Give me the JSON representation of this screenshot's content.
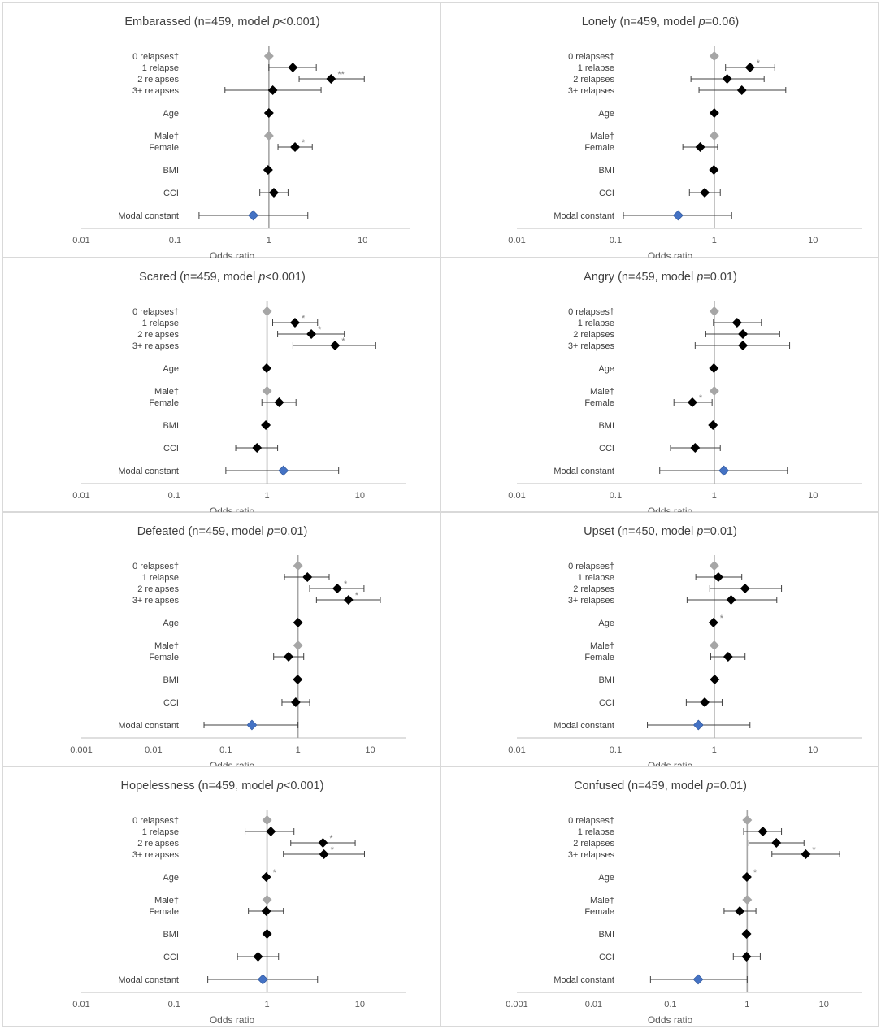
{
  "colors": {
    "point": "#000000",
    "reference": "#a6a6a6",
    "constant": "#4472c4",
    "axis": "#bfbfbf",
    "refline": "#a6a6a6",
    "errbar": "#404040"
  },
  "chart_data": [
    {
      "type": "forest",
      "title_main": "Embarassed (n=459, model ",
      "title_p": "p",
      "title_end": "<0.001)",
      "xlabel": "Odds ratio",
      "xscale": "log",
      "xticks": [
        0.01,
        0.1,
        1,
        10
      ],
      "xtick_labels": [
        "0.01",
        "0.1",
        "1",
        "10"
      ],
      "rows": [
        {
          "label": "0 relapses†",
          "or": 1,
          "ref": true
        },
        {
          "label": "1 relapse",
          "or": 1.8,
          "lo": 1.0,
          "hi": 3.2
        },
        {
          "label": "2 relapses",
          "or": 4.6,
          "lo": 2.1,
          "hi": 10.4,
          "sig": "**"
        },
        {
          "label": "3+ relapses",
          "or": 1.1,
          "lo": 0.34,
          "hi": 3.6
        },
        {
          "label": "Age",
          "or": 1.0,
          "lo": 0.98,
          "hi": 1.02
        },
        {
          "label": "Male†",
          "or": 1,
          "ref": true
        },
        {
          "label": "Female",
          "or": 1.9,
          "lo": 1.25,
          "hi": 2.9,
          "sig": "*"
        },
        {
          "label": "BMI",
          "or": 0.98,
          "lo": 0.95,
          "hi": 1.01
        },
        {
          "label": "CCI",
          "or": 1.13,
          "lo": 0.8,
          "hi": 1.6
        },
        {
          "label": "Modal constant",
          "or": 0.68,
          "lo": 0.18,
          "hi": 2.6,
          "constant": true
        }
      ]
    },
    {
      "type": "forest",
      "title_main": "Lonely (n=459, model ",
      "title_p": "p",
      "title_end": "=0.06)",
      "xlabel": "Odds ratio",
      "xscale": "log",
      "xticks": [
        0.01,
        0.1,
        1,
        10
      ],
      "xtick_labels": [
        "0.01",
        "0.1",
        "1",
        "10"
      ],
      "rows": [
        {
          "label": "0 relapses†",
          "or": 1,
          "ref": true
        },
        {
          "label": "1 relapse",
          "or": 2.3,
          "lo": 1.3,
          "hi": 4.1,
          "sig": "*"
        },
        {
          "label": "2 relapses",
          "or": 1.35,
          "lo": 0.58,
          "hi": 3.2
        },
        {
          "label": "3+ relapses",
          "or": 1.9,
          "lo": 0.7,
          "hi": 5.3
        },
        {
          "label": "Age",
          "or": 1.0,
          "lo": 0.98,
          "hi": 1.02
        },
        {
          "label": "Male†",
          "or": 1,
          "ref": true
        },
        {
          "label": "Female",
          "or": 0.72,
          "lo": 0.48,
          "hi": 1.08
        },
        {
          "label": "BMI",
          "or": 0.99,
          "lo": 0.96,
          "hi": 1.02
        },
        {
          "label": "CCI",
          "or": 0.8,
          "lo": 0.56,
          "hi": 1.15
        },
        {
          "label": "Modal constant",
          "or": 0.43,
          "lo": 0.12,
          "hi": 1.5,
          "constant": true
        }
      ]
    },
    {
      "type": "forest",
      "title_main": "Scared (n=459, model ",
      "title_p": "p",
      "title_end": "<0.001)",
      "xlabel": "Odds ratio",
      "xscale": "log",
      "xticks": [
        0.01,
        0.1,
        1,
        10
      ],
      "xtick_labels": [
        "0.01",
        "0.1",
        "1",
        "10"
      ],
      "rows": [
        {
          "label": "0 relapses†",
          "or": 1,
          "ref": true
        },
        {
          "label": "1 relapse",
          "or": 2.0,
          "lo": 1.15,
          "hi": 3.5,
          "sig": "*"
        },
        {
          "label": "2 relapses",
          "or": 3.0,
          "lo": 1.3,
          "hi": 6.8,
          "sig": "*"
        },
        {
          "label": "3+ relapses",
          "or": 5.4,
          "lo": 1.9,
          "hi": 14.8,
          "sig": "*"
        },
        {
          "label": "Age",
          "or": 0.99,
          "lo": 0.97,
          "hi": 1.01
        },
        {
          "label": "Male†",
          "or": 1,
          "ref": true
        },
        {
          "label": "Female",
          "or": 1.35,
          "lo": 0.88,
          "hi": 2.05
        },
        {
          "label": "BMI",
          "or": 0.97,
          "lo": 0.94,
          "hi": 1.0
        },
        {
          "label": "CCI",
          "or": 0.78,
          "lo": 0.46,
          "hi": 1.3
        },
        {
          "label": "Modal constant",
          "or": 1.5,
          "lo": 0.36,
          "hi": 5.9,
          "constant": true
        }
      ]
    },
    {
      "type": "forest",
      "title_main": "Angry (n=459, model ",
      "title_p": "p",
      "title_end": "=0.01)",
      "xlabel": "Odds ratio",
      "xscale": "log",
      "xticks": [
        0.01,
        0.1,
        1,
        10
      ],
      "xtick_labels": [
        "0.01",
        "0.1",
        "1",
        "10"
      ],
      "rows": [
        {
          "label": "0 relapses†",
          "or": 1,
          "ref": true
        },
        {
          "label": "1 relapse",
          "or": 1.7,
          "lo": 0.98,
          "hi": 3.0
        },
        {
          "label": "2 relapses",
          "or": 1.95,
          "lo": 0.82,
          "hi": 4.6
        },
        {
          "label": "3+ relapses",
          "or": 1.95,
          "lo": 0.64,
          "hi": 5.8
        },
        {
          "label": "Age",
          "or": 0.99,
          "lo": 0.97,
          "hi": 1.01
        },
        {
          "label": "Male†",
          "or": 1,
          "ref": true
        },
        {
          "label": "Female",
          "or": 0.6,
          "lo": 0.39,
          "hi": 0.95,
          "sig": "*"
        },
        {
          "label": "BMI",
          "or": 0.97,
          "lo": 0.94,
          "hi": 1.0
        },
        {
          "label": "CCI",
          "or": 0.64,
          "lo": 0.36,
          "hi": 1.15
        },
        {
          "label": "Modal constant",
          "or": 1.25,
          "lo": 0.28,
          "hi": 5.5,
          "constant": true
        }
      ]
    },
    {
      "type": "forest",
      "title_main": "Defeated (n=459, model ",
      "title_p": "p",
      "title_end": "=0.01)",
      "xlabel": "Odds ratio",
      "xscale": "log",
      "xticks": [
        0.001,
        0.01,
        0.1,
        1,
        10
      ],
      "xtick_labels": [
        "0.001",
        "0.01",
        "0.1",
        "1",
        "10"
      ],
      "rows": [
        {
          "label": "0 relapses†",
          "or": 1,
          "ref": true
        },
        {
          "label": "1 relapse",
          "or": 1.35,
          "lo": 0.65,
          "hi": 2.7
        },
        {
          "label": "2 relapses",
          "or": 3.5,
          "lo": 1.45,
          "hi": 8.2,
          "sig": "*"
        },
        {
          "label": "3+ relapses",
          "or": 5.0,
          "lo": 1.8,
          "hi": 13.8,
          "sig": "*"
        },
        {
          "label": "Age",
          "or": 1.0,
          "lo": 0.98,
          "hi": 1.02
        },
        {
          "label": "Male†",
          "or": 1,
          "ref": true
        },
        {
          "label": "Female",
          "or": 0.74,
          "lo": 0.46,
          "hi": 1.2
        },
        {
          "label": "BMI",
          "or": 0.99,
          "lo": 0.96,
          "hi": 1.02
        },
        {
          "label": "CCI",
          "or": 0.93,
          "lo": 0.6,
          "hi": 1.45
        },
        {
          "label": "Modal constant",
          "or": 0.23,
          "lo": 0.05,
          "hi": 1.0,
          "constant": true
        }
      ]
    },
    {
      "type": "forest",
      "title_main": "Upset (n=450, model ",
      "title_p": "p",
      "title_end": "=0.01)",
      "xlabel": "Odds ratio",
      "xscale": "log",
      "xticks": [
        0.01,
        0.1,
        1,
        10
      ],
      "xtick_labels": [
        "0.01",
        "0.1",
        "1",
        "10"
      ],
      "rows": [
        {
          "label": "0 relapses†",
          "or": 1,
          "ref": true
        },
        {
          "label": "1 relapse",
          "or": 1.1,
          "lo": 0.65,
          "hi": 1.9
        },
        {
          "label": "2 relapses",
          "or": 2.05,
          "lo": 0.9,
          "hi": 4.8
        },
        {
          "label": "3+ relapses",
          "or": 1.48,
          "lo": 0.53,
          "hi": 4.3
        },
        {
          "label": "Age",
          "or": 0.98,
          "lo": 0.96,
          "hi": 1.0,
          "sig": "*"
        },
        {
          "label": "Male†",
          "or": 1,
          "ref": true
        },
        {
          "label": "Female",
          "or": 1.38,
          "lo": 0.92,
          "hi": 2.05
        },
        {
          "label": "BMI",
          "or": 1.01,
          "lo": 0.98,
          "hi": 1.04
        },
        {
          "label": "CCI",
          "or": 0.8,
          "lo": 0.52,
          "hi": 1.2
        },
        {
          "label": "Modal constant",
          "or": 0.69,
          "lo": 0.21,
          "hi": 2.3,
          "constant": true
        }
      ]
    },
    {
      "type": "forest",
      "title_main": "Hopelessness (n=459, model ",
      "title_p": "p",
      "title_end": "<0.001)",
      "xlabel": "Odds ratio",
      "xscale": "log",
      "xticks": [
        0.01,
        0.1,
        1,
        10
      ],
      "xtick_labels": [
        "0.01",
        "0.1",
        "1",
        "10"
      ],
      "rows": [
        {
          "label": "0 relapses†",
          "or": 1,
          "ref": true
        },
        {
          "label": "1 relapse",
          "or": 1.1,
          "lo": 0.58,
          "hi": 1.95
        },
        {
          "label": "2 relapses",
          "or": 4.0,
          "lo": 1.8,
          "hi": 8.9,
          "sig": "*"
        },
        {
          "label": "3+ relapses",
          "or": 4.1,
          "lo": 1.5,
          "hi": 11.2,
          "sig": "*"
        },
        {
          "label": "Age",
          "or": 0.98,
          "lo": 0.96,
          "hi": 1.0,
          "sig": "*"
        },
        {
          "label": "Male†",
          "or": 1,
          "ref": true
        },
        {
          "label": "Female",
          "or": 0.98,
          "lo": 0.63,
          "hi": 1.5
        },
        {
          "label": "BMI",
          "or": 1.0,
          "lo": 0.97,
          "hi": 1.03
        },
        {
          "label": "CCI",
          "or": 0.8,
          "lo": 0.48,
          "hi": 1.33
        },
        {
          "label": "Modal constant",
          "or": 0.9,
          "lo": 0.23,
          "hi": 3.5,
          "constant": true
        }
      ]
    },
    {
      "type": "forest",
      "title_main": "Confused (n=459, model ",
      "title_p": "p",
      "title_end": "=0.01)",
      "xlabel": "Odds ratio",
      "xscale": "log",
      "xticks": [
        0.001,
        0.01,
        0.1,
        1,
        10
      ],
      "xtick_labels": [
        "0.001",
        "0.01",
        "0.1",
        "1",
        "10"
      ],
      "rows": [
        {
          "label": "0 relapses†",
          "or": 1,
          "ref": true
        },
        {
          "label": "1 relapse",
          "or": 1.6,
          "lo": 0.9,
          "hi": 2.8
        },
        {
          "label": "2 relapses",
          "or": 2.4,
          "lo": 1.05,
          "hi": 5.5
        },
        {
          "label": "3+ relapses",
          "or": 5.8,
          "lo": 2.1,
          "hi": 16.0,
          "sig": "*"
        },
        {
          "label": "Age",
          "or": 0.99,
          "lo": 0.97,
          "hi": 1.01,
          "sig": "*"
        },
        {
          "label": "Male†",
          "or": 1,
          "ref": true
        },
        {
          "label": "Female",
          "or": 0.8,
          "lo": 0.5,
          "hi": 1.3
        },
        {
          "label": "BMI",
          "or": 0.98,
          "lo": 0.95,
          "hi": 1.01
        },
        {
          "label": "CCI",
          "or": 0.98,
          "lo": 0.66,
          "hi": 1.48
        },
        {
          "label": "Modal constant",
          "or": 0.23,
          "lo": 0.055,
          "hi": 1.0,
          "constant": true
        }
      ]
    }
  ]
}
